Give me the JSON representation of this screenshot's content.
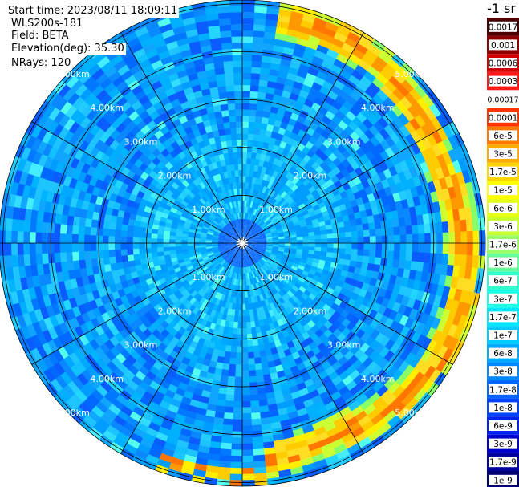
{
  "header": {
    "start_time": "Start time: 2023/08/11 18:09:11",
    "device": "WLS200s-181",
    "field": "Field: BETA",
    "elevation": "Elevation(deg): 35.30",
    "nrays": "NRays: 120"
  },
  "colorbar": {
    "unit_label": "-1 sr",
    "ticks": [
      "0.0017",
      "0.001",
      "0.0006",
      "0.0003",
      "0.00017",
      "0.0001",
      "6e-5",
      "3e-5",
      "1.7e-5",
      "1e-5",
      "6e-6",
      "3e-6",
      "1.7e-6",
      "1e-6",
      "6e-7",
      "3e-7",
      "1.7e-7",
      "1e-7",
      "6e-8",
      "3e-8",
      "1.7e-8",
      "1e-8",
      "6e-9",
      "3e-9",
      "1.7e-9",
      "1e-9"
    ],
    "colors": [
      "#4a0000",
      "#8c0000",
      "#d20000",
      "#ff1a1a",
      "#ffffff",
      "#ff3300",
      "#ff7a00",
      "#ffaa00",
      "#ffd400",
      "#ffff00",
      "#e6ff1a",
      "#c8ff33",
      "#99ff66",
      "#66ff99",
      "#33ffcc",
      "#1affe6",
      "#00e6ff",
      "#00ccff",
      "#00aaff",
      "#0088ff",
      "#0066ff",
      "#0044ff",
      "#0022ee",
      "#0000cc",
      "#0000a0",
      "#000070"
    ]
  },
  "chart_data": {
    "type": "heatmap",
    "projection": "polar-ppi",
    "range_rings_km": [
      1,
      2,
      3,
      4,
      5
    ],
    "ring_labels": [
      "1.00km",
      "2.00km",
      "3.00km",
      "4.00km",
      "5.00km"
    ],
    "radial_spokes_deg": [
      0,
      30,
      60,
      90,
      120,
      150,
      180,
      210,
      240,
      270,
      300,
      330
    ],
    "max_range_km": 5.0,
    "aerosol_layer_range_km": [
      4.2,
      4.9
    ],
    "aerosol_layer_azimuth_deg": [
      10,
      175
    ],
    "background_beta_sr": "1e-7",
    "layer_peak_beta_sr": "3e-5"
  }
}
